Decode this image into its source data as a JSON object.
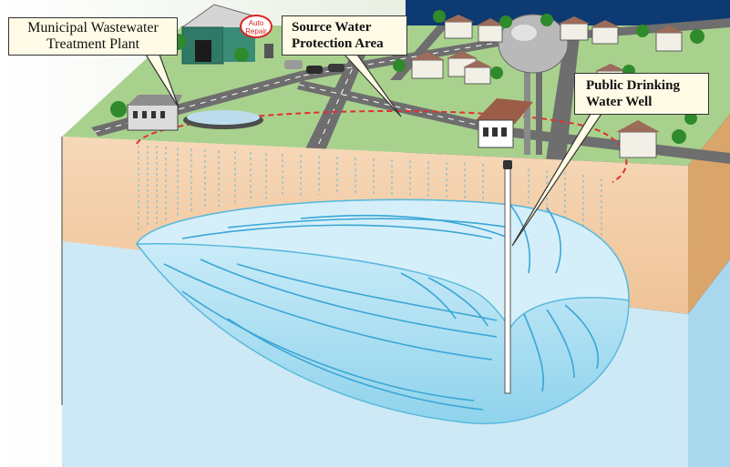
{
  "labels": {
    "wastewater_line1": "Municipal Wastewater",
    "wastewater_line2": "Treatment Plant",
    "protection_line1": "Source Water",
    "protection_line2": "Protection Area",
    "well_line1": "Public Drinking",
    "well_line2": "Water Well",
    "sign_line1": "Auto",
    "sign_line2": "Repair"
  },
  "colors": {
    "background_right": "#0d3a72",
    "ground": "#a9d18e",
    "road": "#6e6e6e",
    "soil": "#f2c9a0",
    "aquifer": "#cde9f5",
    "plume": "#8fd3ec",
    "protection_boundary": "#e03030"
  }
}
